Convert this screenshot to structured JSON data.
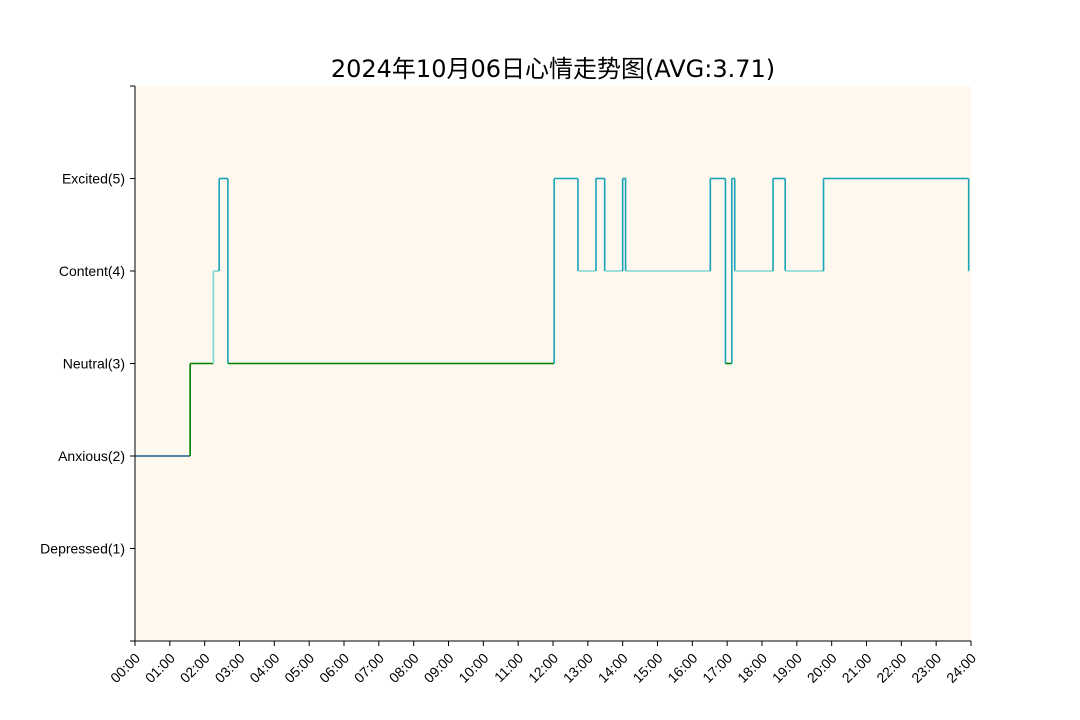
{
  "chart_data": {
    "type": "line",
    "step": "post",
    "title": "2024年10月06日心情走势图(AVG:3.71)",
    "xlabel": "",
    "ylabel": "",
    "x_range_hours": [
      0,
      24
    ],
    "ylim": [
      0,
      6
    ],
    "grid": false,
    "legend": "none",
    "y_ticks": [
      {
        "value": 1,
        "label": "Depressed(1)"
      },
      {
        "value": 2,
        "label": "Anxious(2)"
      },
      {
        "value": 3,
        "label": "Neutral(3)"
      },
      {
        "value": 4,
        "label": "Content(4)"
      },
      {
        "value": 5,
        "label": "Excited(5)"
      }
    ],
    "x_ticks": [
      "00:00",
      "01:00",
      "02:00",
      "03:00",
      "04:00",
      "05:00",
      "06:00",
      "07:00",
      "08:00",
      "09:00",
      "10:00",
      "11:00",
      "12:00",
      "13:00",
      "14:00",
      "15:00",
      "16:00",
      "17:00",
      "18:00",
      "19:00",
      "20:00",
      "21:00",
      "22:00",
      "23:00",
      "24:00"
    ],
    "points": [
      {
        "x": "00:00",
        "y": 2
      },
      {
        "x": "01:35",
        "y": 3
      },
      {
        "x": "02:15",
        "y": 4
      },
      {
        "x": "02:25",
        "y": 5
      },
      {
        "x": "02:40",
        "y": 3
      },
      {
        "x": "12:02",
        "y": 5
      },
      {
        "x": "12:43",
        "y": 4
      },
      {
        "x": "13:14",
        "y": 5
      },
      {
        "x": "13:29",
        "y": 4
      },
      {
        "x": "14:00",
        "y": 5
      },
      {
        "x": "14:05",
        "y": 4
      },
      {
        "x": "16:31",
        "y": 5
      },
      {
        "x": "16:57",
        "y": 3
      },
      {
        "x": "17:08",
        "y": 5
      },
      {
        "x": "17:13",
        "y": 4
      },
      {
        "x": "18:19",
        "y": 5
      },
      {
        "x": "18:40",
        "y": 4
      },
      {
        "x": "19:46",
        "y": 5
      },
      {
        "x": "23:56",
        "y": 4
      }
    ],
    "level_colors": {
      "1": "#1f4e79",
      "2": "#1f5f8b",
      "3": "#008000",
      "4": "#7fd8d0",
      "5": "#17a2b8"
    },
    "colors": {
      "plot_background": "#fff8ee",
      "axis": "#000000"
    }
  }
}
